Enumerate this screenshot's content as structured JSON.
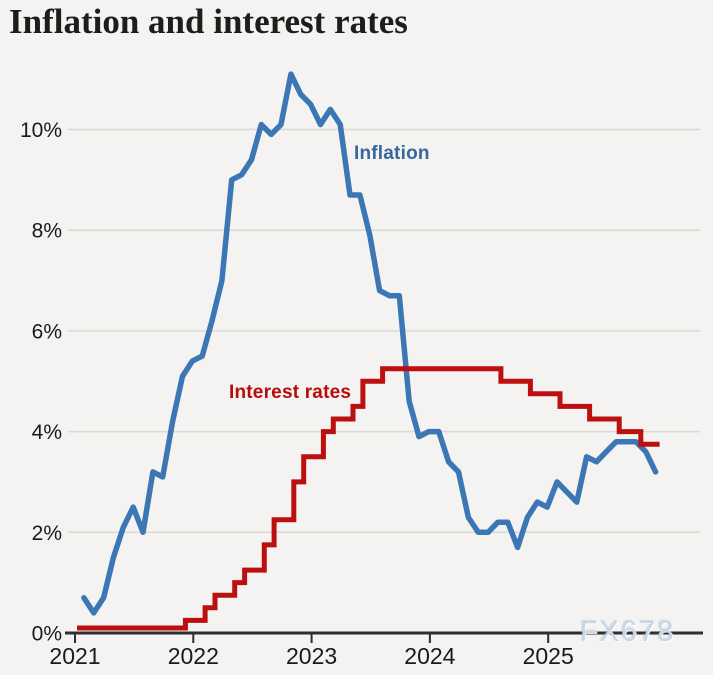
{
  "header": {
    "title": "Inflation and interest rates"
  },
  "watermark": {
    "text": "FX678"
  },
  "colors": {
    "background": "#f4f3f1",
    "inflation_line": "#3b77b4",
    "inflation_label": "#35689d",
    "interest_line": "#bc0f0f",
    "interest_label": "#b80c0c",
    "gridline": "#d9d8d5",
    "axis": "#2e2e2e",
    "text": "#1a1a1a",
    "watermark": "#c9d6ea"
  },
  "chart_data": {
    "type": "line",
    "title": "Inflation and interest rates",
    "grid": true,
    "x_axis": {
      "ticks": [
        2021,
        2022,
        2023,
        2024,
        2025
      ],
      "note": "monthly data, m = months since Jan 2021; data runs to late 2025"
    },
    "y_axis": {
      "unit": "%",
      "tick_values": [
        0,
        2,
        4,
        6,
        8,
        10
      ],
      "tick_labels": [
        "0%",
        "2%",
        "4%",
        "6%",
        "8%",
        "10%"
      ],
      "ylim": [
        0,
        11.6
      ]
    },
    "series": [
      {
        "name": "Inflation",
        "style": "line",
        "start_month_index": 0,
        "monthly_values_pct": [
          0.7,
          0.4,
          0.7,
          1.5,
          2.1,
          2.5,
          2.0,
          3.2,
          3.1,
          4.2,
          5.1,
          5.4,
          5.5,
          6.2,
          7.0,
          9.0,
          9.1,
          9.4,
          10.1,
          9.9,
          10.1,
          11.1,
          10.7,
          10.5,
          10.1,
          10.4,
          10.1,
          8.7,
          8.7,
          7.9,
          6.8,
          6.7,
          6.7,
          4.6,
          3.9,
          4.0,
          4.0,
          3.4,
          3.2,
          2.3,
          2.0,
          2.0,
          2.2,
          2.2,
          1.7,
          2.3,
          2.6,
          2.5,
          3.0,
          2.8,
          2.6,
          3.5,
          3.4,
          3.6,
          3.8,
          3.8,
          3.8,
          3.6,
          3.2
        ]
      },
      {
        "name": "Interest rates",
        "style": "step",
        "end_month_index": 59.1,
        "steps_pct": [
          {
            "from_m": 0,
            "rate": 0.1
          },
          {
            "from_m": 11,
            "rate": 0.25
          },
          {
            "from_m": 13,
            "rate": 0.5
          },
          {
            "from_m": 14,
            "rate": 0.75
          },
          {
            "from_m": 16,
            "rate": 1.0
          },
          {
            "from_m": 17,
            "rate": 1.25
          },
          {
            "from_m": 19,
            "rate": 1.75
          },
          {
            "from_m": 20,
            "rate": 2.25
          },
          {
            "from_m": 22,
            "rate": 3.0
          },
          {
            "from_m": 23,
            "rate": 3.5
          },
          {
            "from_m": 25,
            "rate": 4.0
          },
          {
            "from_m": 26,
            "rate": 4.25
          },
          {
            "from_m": 28,
            "rate": 4.5
          },
          {
            "from_m": 29,
            "rate": 5.0
          },
          {
            "from_m": 31,
            "rate": 5.25
          },
          {
            "from_m": 43,
            "rate": 5.0
          },
          {
            "from_m": 46,
            "rate": 4.75
          },
          {
            "from_m": 49,
            "rate": 4.5
          },
          {
            "from_m": 52,
            "rate": 4.25
          },
          {
            "from_m": 55,
            "rate": 4.0
          },
          {
            "from_m": 57.2,
            "rate": 3.75
          }
        ]
      }
    ],
    "annotations": [
      {
        "text": "Inflation"
      },
      {
        "text": "Interest rates"
      }
    ]
  }
}
